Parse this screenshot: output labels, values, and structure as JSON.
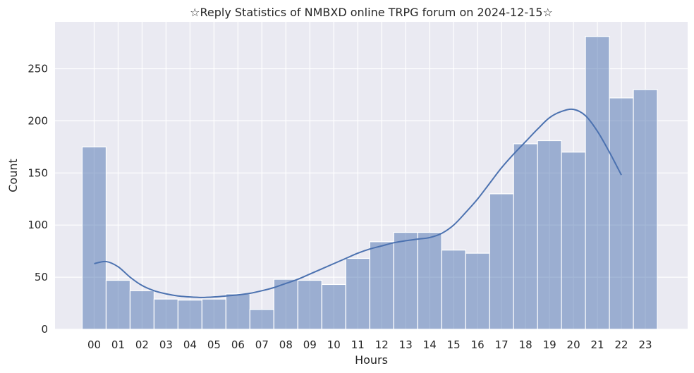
{
  "chart_data": {
    "type": "bar",
    "title": "☆Reply Statistics of NMBXD online TRPG forum on 2024-12-15☆",
    "xlabel": "Hours",
    "ylabel": "Count",
    "categories": [
      "00",
      "01",
      "02",
      "03",
      "04",
      "05",
      "06",
      "07",
      "08",
      "09",
      "10",
      "11",
      "12",
      "13",
      "14",
      "15",
      "16",
      "17",
      "18",
      "19",
      "20",
      "21",
      "22",
      "23"
    ],
    "values": [
      175,
      47,
      37,
      29,
      28,
      29,
      34,
      19,
      48,
      47,
      43,
      68,
      84,
      93,
      93,
      76,
      73,
      130,
      178,
      181,
      170,
      281,
      222,
      230
    ],
    "kde_curve": {
      "label": "kde",
      "points": [
        [
          0,
          63
        ],
        [
          0.5,
          65
        ],
        [
          1,
          60
        ],
        [
          1.5,
          50
        ],
        [
          2,
          42
        ],
        [
          2.5,
          37
        ],
        [
          3,
          34
        ],
        [
          3.5,
          32
        ],
        [
          4,
          31
        ],
        [
          4.5,
          30.5
        ],
        [
          5,
          31
        ],
        [
          5.5,
          32
        ],
        [
          6,
          33
        ],
        [
          6.5,
          34.5
        ],
        [
          7,
          37
        ],
        [
          7.5,
          40
        ],
        [
          8,
          44
        ],
        [
          8.5,
          48
        ],
        [
          9,
          53
        ],
        [
          9.5,
          58
        ],
        [
          10,
          63
        ],
        [
          10.5,
          68
        ],
        [
          11,
          73
        ],
        [
          11.5,
          77
        ],
        [
          12,
          80
        ],
        [
          12.5,
          83
        ],
        [
          13,
          85
        ],
        [
          13.5,
          86.5
        ],
        [
          14,
          88
        ],
        [
          14.5,
          92
        ],
        [
          15,
          100
        ],
        [
          15.5,
          112
        ],
        [
          16,
          125
        ],
        [
          16.5,
          140
        ],
        [
          17,
          155
        ],
        [
          17.5,
          168
        ],
        [
          18,
          180
        ],
        [
          18.5,
          192
        ],
        [
          19,
          203
        ],
        [
          19.5,
          209
        ],
        [
          20,
          211
        ],
        [
          20.5,
          205
        ],
        [
          21,
          190
        ],
        [
          21.5,
          170
        ],
        [
          22,
          148
        ]
      ]
    },
    "ylim": [
      0,
      295
    ],
    "yticks": [
      0,
      50,
      100,
      150,
      200,
      250
    ],
    "grid": true,
    "bar_color": "#4c72b0",
    "curve_color": "#4c72b0",
    "background_color": "#eaeaf2"
  }
}
